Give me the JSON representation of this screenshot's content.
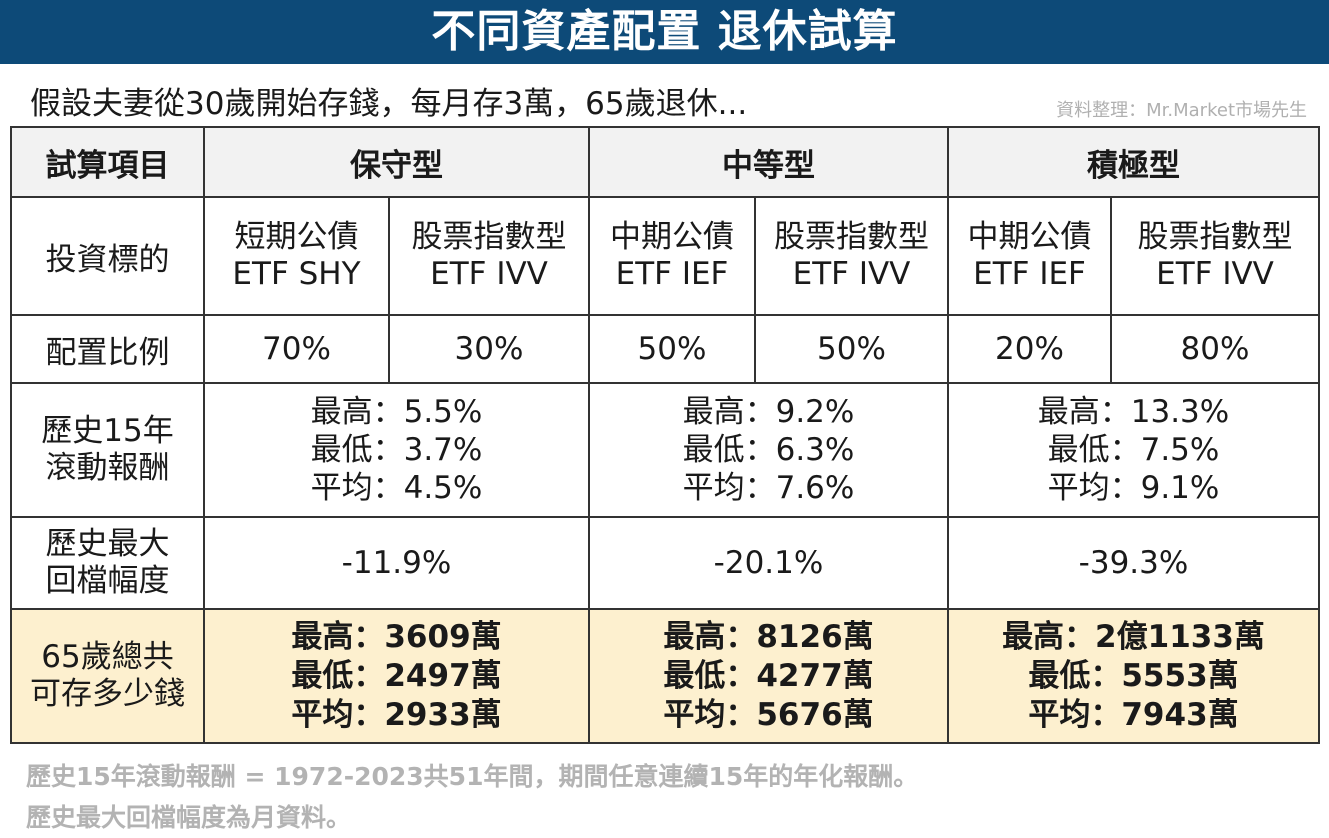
{
  "header": {
    "title": "不同資產配置 退休試算",
    "subtitle": "假設夫妻從30歲開始存錢，每月存3萬，65歲退休...",
    "source": "資料整理：Mr.Market市場先生"
  },
  "table": {
    "corner": "試算項目",
    "columns": [
      "保守型",
      "中等型",
      "積極型"
    ],
    "rows": {
      "target": {
        "label": "投資標的",
        "cells": [
          [
            "短期公債",
            "ETF SHY"
          ],
          [
            "股票指數型",
            "ETF IVV"
          ],
          [
            "中期公債",
            "ETF IEF"
          ],
          [
            "股票指數型",
            "ETF IVV"
          ],
          [
            "中期公債",
            "ETF IEF"
          ],
          [
            "股票指數型",
            "ETF IVV"
          ]
        ]
      },
      "allocation": {
        "label": "配置比例",
        "cells": [
          "70%",
          "30%",
          "50%",
          "50%",
          "20%",
          "80%"
        ]
      },
      "rolling": {
        "label": [
          "歷史15年",
          "滾動報酬"
        ],
        "cells": [
          [
            "最高：5.5%",
            "最低：3.7%",
            "平均：4.5%"
          ],
          [
            "最高：9.2%",
            "最低：6.3%",
            "平均：7.6%"
          ],
          [
            "最高：13.3%",
            "最低：7.5%",
            "平均：9.1%"
          ]
        ]
      },
      "drawdown": {
        "label": [
          "歷史最大",
          "回檔幅度"
        ],
        "cells": [
          "-11.9%",
          "-20.1%",
          "-39.3%"
        ]
      },
      "savings": {
        "label": [
          "65歲總共",
          "可存多少錢"
        ],
        "cells": [
          [
            "最高：3609萬",
            "最低：2497萬",
            "平均：2933萬"
          ],
          [
            "最高：8126萬",
            "最低：4277萬",
            "平均：5676萬"
          ],
          [
            "最高：2億1133萬",
            "最低：5553萬",
            "平均：7943萬"
          ]
        ]
      }
    }
  },
  "notes": [
    "歷史15年滾動報酬 = 1972-2023共51年間，期間任意連續15年的年化報酬。",
    "歷史最大回檔幅度為月資料。"
  ]
}
